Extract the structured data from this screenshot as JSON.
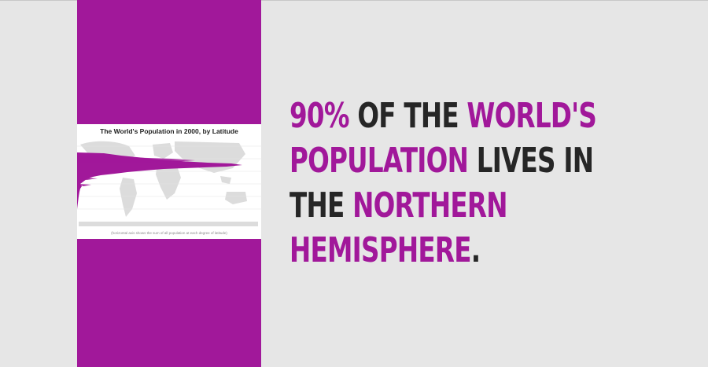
{
  "infographic": {
    "title": "The World's Population in 2000, by Latitude",
    "caption": "(horizontal axis shows the sum of all population at each degree of latitude)"
  },
  "headline": {
    "seg1": "90%",
    "seg2": " OF THE ",
    "seg3": "WORLD'S",
    "seg4": "POPULATION",
    "seg5": " LIVES IN",
    "seg6": "THE ",
    "seg7": "NORTHERN",
    "seg8": "HEMISPHERE",
    "seg9": "."
  },
  "colors": {
    "accent": "#a1189a",
    "text": "#262626",
    "background": "#e6e6e6"
  }
}
